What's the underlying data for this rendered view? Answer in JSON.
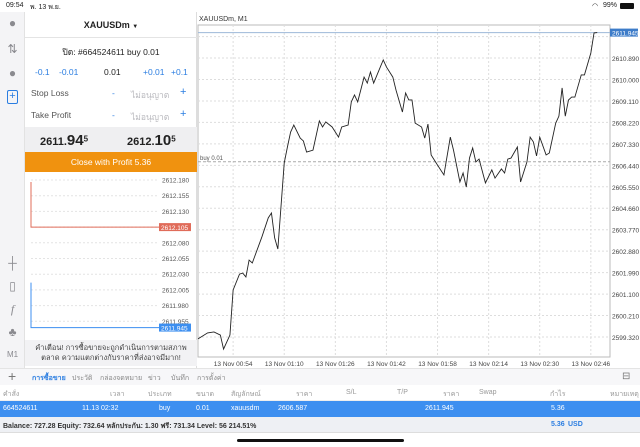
{
  "status": {
    "time": "09:54",
    "date": "พ. 13 พ.ย.",
    "battery": "99%"
  },
  "rail": {
    "icons": [
      "account-icon",
      "trade-arrows-icon",
      "chat-icon",
      "new-order-icon",
      "crosshair-icon",
      "indicators-icon",
      "function-icon",
      "objects-icon"
    ],
    "timeframe": "M1"
  },
  "order": {
    "symbol": "XAUUSDm",
    "close_title": "ปิด: #664524611 buy 0.01",
    "volume": {
      "minus_big": "-0.1",
      "minus_small": "-0.01",
      "value": "0.01",
      "plus_small": "+0.01",
      "plus_big": "+0.1"
    },
    "stop_loss": {
      "label": "Stop Loss",
      "minus": "-",
      "value": "ไม่อนุญาต",
      "plus": "+"
    },
    "take_profit": {
      "label": "Take Profit",
      "minus": "-",
      "value": "ไม่อนุญาต",
      "plus": "+"
    },
    "bid": {
      "main": "2611.",
      "big": "94",
      "sup": "5"
    },
    "ask": {
      "main": "2612.",
      "big": "10",
      "sup": "5"
    },
    "close_button": "Close with Profit 5.36",
    "close_color": "#f0920f",
    "mini_chart": {
      "ticks": [
        "2612.180",
        "2612.155",
        "2612.130",
        "2612.105",
        "2612.080",
        "2612.055",
        "2612.030",
        "2612.005",
        "2611.980",
        "2611.955",
        "2611.945"
      ],
      "ask_label": "2612.105",
      "bid_label": "2611.945",
      "ask_color": "#e06c5a",
      "bid_color": "#3d8ff0"
    },
    "warning": "คำเตือน! การซื้อขายจะถูกดำเนินการตามสภาพตลาด ความแตกต่างกับราคาที่ส่งอาจมีมาก!"
  },
  "chart_data": {
    "type": "line",
    "title": "XAUUSDm, M1",
    "order_line_label": "buy 0.01",
    "order_price": 2606.587,
    "current_price_label": "2611.945",
    "ylim": [
      2598.49,
      2612.26
    ],
    "xlim": [
      "00:43",
      "02:52"
    ],
    "grid": true,
    "y_ticks": [
      "2611.780",
      "2610.890",
      "2610.000",
      "2609.110",
      "2608.220",
      "2607.330",
      "2606.440",
      "2605.550",
      "2604.660",
      "2603.770",
      "2602.880",
      "2601.990",
      "2601.100",
      "2600.210",
      "2599.320"
    ],
    "x_ticks": [
      "13 Nov 00:54",
      "13 Nov 01:10",
      "13 Nov 01:26",
      "13 Nov 01:42",
      "13 Nov 01:58",
      "13 Nov 02:14",
      "13 Nov 02:30",
      "13 Nov 02:46"
    ],
    "points": [
      [
        "00:43",
        2599.24
      ],
      [
        "00:46",
        2599.49
      ],
      [
        "00:48",
        2599.53
      ],
      [
        "00:50",
        2599.4
      ],
      [
        "00:51",
        2598.82
      ],
      [
        "00:53",
        2599.4
      ],
      [
        "00:54",
        2601.27
      ],
      [
        "00:56",
        2601.93
      ],
      [
        "00:57",
        2601.97
      ],
      [
        "00:58",
        2601.81
      ],
      [
        "00:59",
        2602.51
      ],
      [
        "01:00",
        2602.39
      ],
      [
        "01:03",
        2603.47
      ],
      [
        "01:05",
        2604.26
      ],
      [
        "01:06",
        2604.46
      ],
      [
        "01:07",
        2603.43
      ],
      [
        "01:08",
        2602.97
      ],
      [
        "01:10",
        2606.54
      ],
      [
        "01:11",
        2607.2
      ],
      [
        "01:12",
        2607.82
      ],
      [
        "01:13",
        2608.11
      ],
      [
        "01:15",
        2607.57
      ],
      [
        "01:16",
        2607.45
      ],
      [
        "01:17",
        2606.99
      ],
      [
        "01:19",
        2607.07
      ],
      [
        "01:21",
        2608.28
      ],
      [
        "01:22",
        2608.03
      ],
      [
        "01:23",
        2608.24
      ],
      [
        "01:25",
        2608.03
      ],
      [
        "01:27",
        2607.61
      ],
      [
        "01:28",
        2608.03
      ],
      [
        "01:30",
        2608.11
      ],
      [
        "01:31",
        2609.07
      ],
      [
        "01:32",
        2609.36
      ],
      [
        "01:33",
        2609.07
      ],
      [
        "01:35",
        2610.1
      ],
      [
        "01:36",
        2609.85
      ],
      [
        "01:37",
        2610.31
      ],
      [
        "01:38",
        2609.85
      ],
      [
        "01:41",
        2610.81
      ],
      [
        "01:42",
        2610.52
      ],
      [
        "01:44",
        2610.1
      ],
      [
        "01:45",
        2609.56
      ],
      [
        "01:47",
        2608.65
      ],
      [
        "01:48",
        2609.44
      ],
      [
        "01:49",
        2609.15
      ],
      [
        "01:50",
        2609.15
      ],
      [
        "01:51",
        2608.19
      ],
      [
        "01:53",
        2608.03
      ],
      [
        "01:54",
        2607.57
      ],
      [
        "01:55",
        2608.15
      ],
      [
        "01:56",
        2606.87
      ],
      [
        "01:58",
        2606.45
      ],
      [
        "02:00",
        2606.04
      ],
      [
        "02:02",
        2607.61
      ],
      [
        "02:03",
        2607.07
      ],
      [
        "02:05",
        2605.75
      ],
      [
        "02:06",
        2606.12
      ],
      [
        "02:07",
        2605.54
      ],
      [
        "02:08",
        2606.74
      ],
      [
        "02:09",
        2607.16
      ],
      [
        "02:10",
        2606.58
      ],
      [
        "02:11",
        2606.7
      ],
      [
        "02:13",
        2605.71
      ],
      [
        "02:15",
        2606.25
      ],
      [
        "02:16",
        2605.91
      ],
      [
        "02:18",
        2606.29
      ],
      [
        "02:19",
        2606.12
      ],
      [
        "02:20",
        2606.7
      ],
      [
        "02:21",
        2606.74
      ],
      [
        "02:23",
        2607.2
      ],
      [
        "02:24",
        2605.75
      ],
      [
        "02:26",
        2606.58
      ],
      [
        "02:27",
        2607.61
      ],
      [
        "02:28",
        2607.41
      ],
      [
        "02:29",
        2606.83
      ],
      [
        "02:30",
        2607.61
      ],
      [
        "02:32",
        2606.87
      ],
      [
        "02:33",
        2606.95
      ],
      [
        "02:35",
        2608.19
      ],
      [
        "02:36",
        2608.48
      ],
      [
        "02:37",
        2609.65
      ],
      [
        "02:38",
        2608.48
      ],
      [
        "02:39",
        2609.15
      ],
      [
        "02:40",
        2609.27
      ],
      [
        "02:41",
        2609.27
      ],
      [
        "02:43",
        2610.19
      ],
      [
        "02:44",
        2610.19
      ],
      [
        "02:46",
        2611.1
      ],
      [
        "02:47",
        2611.93
      ],
      [
        "02:48",
        2611.945
      ]
    ]
  },
  "tabs": {
    "add": "+",
    "items": [
      "การซื้อขาย",
      "ประวัติ",
      "กล่องจดหมาย",
      "ข่าว",
      "บันทึก",
      "การตั้งค่า"
    ],
    "active": 0
  },
  "table": {
    "headers": [
      "คำสั่ง",
      "เวลา",
      "ประเภท",
      "ขนาด",
      "สัญลักษณ์",
      "ราคา",
      "S/L",
      "T/P",
      "ราคา",
      "Swap",
      "กำไร",
      "หมายเหตุ"
    ],
    "row": [
      "664524611",
      "11.13 02:32",
      "buy",
      "0.01",
      "xauusdm",
      "2606.587",
      "",
      "",
      "2611.945",
      "",
      "5.36",
      ""
    ],
    "balance": "Balance: 727.28 Equity: 732.64 หลักประกัน: 1.30 ฟรี: 731.34 Level: 56 214.51%",
    "total": "5.36",
    "currency": "USD",
    "row_color": "#3d8ff0"
  }
}
